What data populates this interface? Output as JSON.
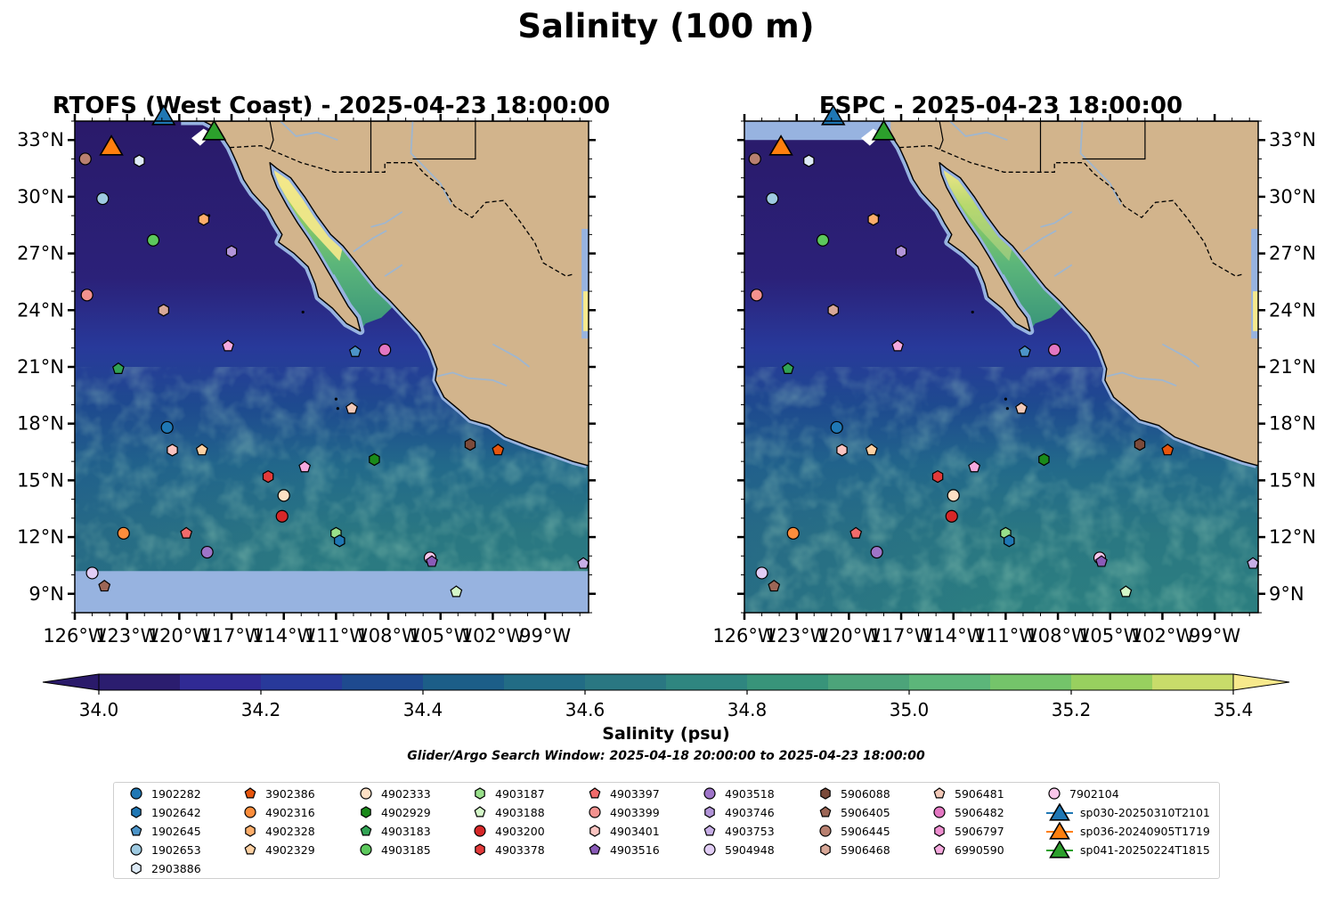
{
  "figure": {
    "title": "Salinity (100 m)"
  },
  "panels": [
    {
      "id": "rtofs",
      "title": "RTOFS (West Coast) - 2025-04-23 18:00:00",
      "lat_labels_side": "left",
      "has_nodata_band": true
    },
    {
      "id": "espc",
      "title": "ESPC - 2025-04-23 18:00:00",
      "lat_labels_side": "right",
      "has_nodata_band": false
    }
  ],
  "axes": {
    "lon_range": [
      -126,
      -96.5
    ],
    "lat_range": [
      8,
      34
    ],
    "lon_ticks": [
      "126°W",
      "123°W",
      "120°W",
      "117°W",
      "114°W",
      "111°W",
      "108°W",
      "105°W",
      "102°W",
      "99°W"
    ],
    "lon_tick_values": [
      -126,
      -123,
      -120,
      -117,
      -114,
      -111,
      -108,
      -105,
      -102,
      -99
    ],
    "lat_ticks": [
      "9°N",
      "12°N",
      "15°N",
      "18°N",
      "21°N",
      "24°N",
      "27°N",
      "30°N",
      "33°N"
    ],
    "lat_tick_values": [
      9,
      12,
      15,
      18,
      21,
      24,
      27,
      30,
      33
    ]
  },
  "colorbar": {
    "label": "Salinity (psu)",
    "min": 34.0,
    "max": 35.4,
    "step": 0.1,
    "tick_labels": [
      "34.0",
      "34.2",
      "34.4",
      "34.6",
      "34.8",
      "35.0",
      "35.2",
      "35.4"
    ],
    "tick_values": [
      34.0,
      34.2,
      34.4,
      34.6,
      34.8,
      35.0,
      35.2,
      35.4
    ],
    "colors": [
      "#2b1d6f",
      "#302a94",
      "#28399a",
      "#1e4a8f",
      "#1c5e88",
      "#226c85",
      "#2a7782",
      "#2f8680",
      "#38947a",
      "#4ca47a",
      "#5cb67a",
      "#74c46a",
      "#98d05f",
      "#c8dc6a"
    ],
    "under_color": "#2a1a6a",
    "over_color": "#f7e98c"
  },
  "search_window": "Glider/Argo Search Window: 2025-04-18 20:00:00 to 2025-04-23 18:00:00",
  "colors": {
    "land": "#d2b48c",
    "nodata": "#97b3e0",
    "rivers": "#9fb6cf"
  },
  "legend": [
    {
      "label": "1902282",
      "shape": "circle",
      "color": "#1f77b4"
    },
    {
      "label": "1902642",
      "shape": "hexagon",
      "color": "#1f77b4"
    },
    {
      "label": "1902645",
      "shape": "pentagon",
      "color": "#4c94c8"
    },
    {
      "label": "1902653",
      "shape": "circle",
      "color": "#9ecae1"
    },
    {
      "label": "2903886",
      "shape": "hexagon",
      "color": "#deebf7"
    },
    {
      "label": "3902386",
      "shape": "pentagon",
      "color": "#e6550d"
    },
    {
      "label": "4902316",
      "shape": "circle",
      "color": "#fd8d3c"
    },
    {
      "label": "4902328",
      "shape": "hexagon",
      "color": "#fdae6b"
    },
    {
      "label": "4902329",
      "shape": "pentagon",
      "color": "#fdd0a2"
    },
    {
      "label": "4902333",
      "shape": "circle",
      "color": "#fde0c5"
    },
    {
      "label": "4902929",
      "shape": "hexagon",
      "color": "#1a8a1a"
    },
    {
      "label": "4903183",
      "shape": "pentagon",
      "color": "#31a354"
    },
    {
      "label": "4903185",
      "shape": "circle",
      "color": "#5cc85c"
    },
    {
      "label": "4903187",
      "shape": "hexagon",
      "color": "#98df8a"
    },
    {
      "label": "4903188",
      "shape": "pentagon",
      "color": "#d4f7c8"
    },
    {
      "label": "4903200",
      "shape": "circle",
      "color": "#d62728"
    },
    {
      "label": "4903378",
      "shape": "hexagon",
      "color": "#e33a3a"
    },
    {
      "label": "4903397",
      "shape": "pentagon",
      "color": "#f26b6b"
    },
    {
      "label": "4903399",
      "shape": "circle",
      "color": "#f4928f"
    },
    {
      "label": "4903401",
      "shape": "hexagon",
      "color": "#f9c3c0"
    },
    {
      "label": "4903516",
      "shape": "pentagon",
      "color": "#8a5bb8"
    },
    {
      "label": "4903518",
      "shape": "circle",
      "color": "#9e74c8"
    },
    {
      "label": "4903746",
      "shape": "hexagon",
      "color": "#b294d8"
    },
    {
      "label": "4903753",
      "shape": "pentagon",
      "color": "#c7aee6"
    },
    {
      "label": "5904948",
      "shape": "circle",
      "color": "#e1cdf5"
    },
    {
      "label": "5906088",
      "shape": "hexagon",
      "color": "#7b4a3a"
    },
    {
      "label": "5906405",
      "shape": "pentagon",
      "color": "#9c6656"
    },
    {
      "label": "5906445",
      "shape": "circle",
      "color": "#b88070"
    },
    {
      "label": "5906468",
      "shape": "hexagon",
      "color": "#d8a898"
    },
    {
      "label": "5906481",
      "shape": "pentagon",
      "color": "#f2c9b8"
    },
    {
      "label": "5906482",
      "shape": "circle",
      "color": "#e377c2"
    },
    {
      "label": "5906797",
      "shape": "hexagon",
      "color": "#ee8ed0"
    },
    {
      "label": "6990590",
      "shape": "pentagon",
      "color": "#f5a9de"
    },
    {
      "label": "7902104",
      "shape": "circle",
      "color": "#f9c6ea"
    },
    {
      "label": "sp030-20250310T2101",
      "shape": "triangle",
      "color": "#1f77b4"
    },
    {
      "label": "sp036-20240905T1719",
      "shape": "triangle",
      "color": "#ff7f0e"
    },
    {
      "label": "sp041-20250224T1815",
      "shape": "triangle",
      "color": "#2ca02c"
    }
  ],
  "observations": [
    {
      "id": "1902653",
      "lon": -124.4,
      "lat": 29.9
    },
    {
      "id": "4902328",
      "lon": -118.6,
      "lat": 28.8
    },
    {
      "id": "4903185",
      "lon": -121.5,
      "lat": 27.7
    },
    {
      "id": "4903746",
      "lon": -117.0,
      "lat": 27.1
    },
    {
      "id": "4903399",
      "lon": -125.3,
      "lat": 24.8
    },
    {
      "id": "5906468",
      "lon": -120.9,
      "lat": 24.0
    },
    {
      "id": "5906445",
      "lon": -125.4,
      "lat": 32.0
    },
    {
      "id": "2903886",
      "lon": -122.3,
      "lat": 31.9
    },
    {
      "id": "6990590",
      "lon": -117.2,
      "lat": 22.1
    },
    {
      "id": "1902645",
      "lon": -109.9,
      "lat": 21.8
    },
    {
      "id": "5906482",
      "lon": -108.2,
      "lat": 21.9
    },
    {
      "id": "4903183",
      "lon": -123.5,
      "lat": 20.9
    },
    {
      "id": "5906481",
      "lon": -110.1,
      "lat": 18.8
    },
    {
      "id": "1902282",
      "lon": -120.7,
      "lat": 17.8
    },
    {
      "id": "4903401",
      "lon": -120.4,
      "lat": 16.6
    },
    {
      "id": "4902329",
      "lon": -118.7,
      "lat": 16.6
    },
    {
      "id": "5906088",
      "lon": -103.3,
      "lat": 16.9
    },
    {
      "id": "3902386",
      "lon": -101.7,
      "lat": 16.6
    },
    {
      "id": "4902929",
      "lon": -108.8,
      "lat": 16.1
    },
    {
      "id": "4903378",
      "lon": -114.9,
      "lat": 15.2
    },
    {
      "id": "6990590",
      "lon": -112.8,
      "lat": 15.7
    },
    {
      "id": "4902333",
      "lon": -114.0,
      "lat": 14.2
    },
    {
      "id": "4903200",
      "lon": -114.1,
      "lat": 13.1
    },
    {
      "id": "4902316",
      "lon": -123.2,
      "lat": 12.2
    },
    {
      "id": "4903397",
      "lon": -119.6,
      "lat": 12.2
    },
    {
      "id": "4903187",
      "lon": -111.0,
      "lat": 12.2
    },
    {
      "id": "1902642",
      "lon": -110.8,
      "lat": 11.8
    },
    {
      "id": "4903518",
      "lon": -118.4,
      "lat": 11.2
    },
    {
      "id": "7902104",
      "lon": -105.6,
      "lat": 10.9
    },
    {
      "id": "4903516",
      "lon": -105.5,
      "lat": 10.7
    },
    {
      "id": "5904948",
      "lon": -125.0,
      "lat": 10.1
    },
    {
      "id": "5906405",
      "lon": -124.3,
      "lat": 9.4
    },
    {
      "id": "4903188",
      "lon": -104.1,
      "lat": 9.1
    },
    {
      "id": "4903753",
      "lon": -96.8,
      "lat": 10.6
    }
  ],
  "gliders": [
    {
      "id": "sp030-20250310T2101",
      "lon": -120.9,
      "lat": 34.2
    },
    {
      "id": "sp036-20240905T1719",
      "lon": -123.9,
      "lat": 32.6
    },
    {
      "id": "sp041-20250224T1815",
      "lon": -118.0,
      "lat": 33.4
    }
  ]
}
